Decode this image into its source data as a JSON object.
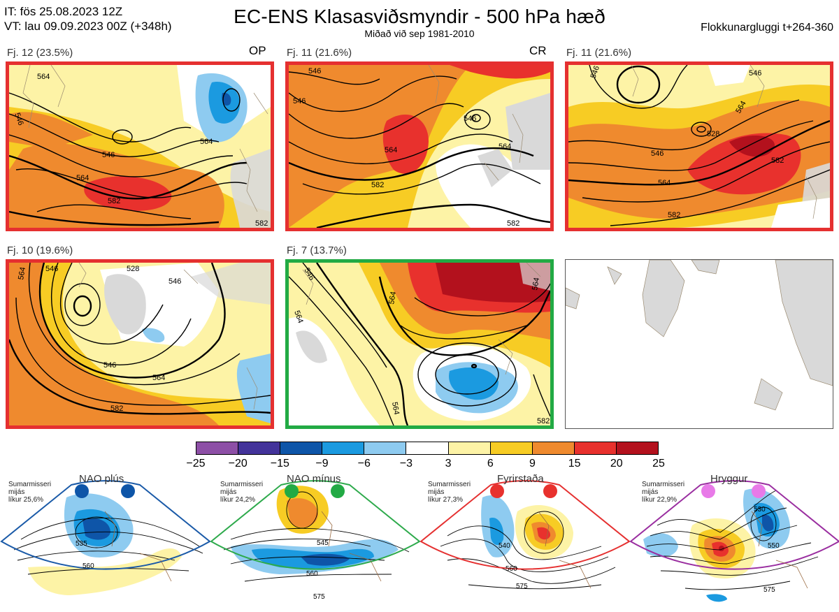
{
  "header": {
    "it_line": "IT: fös 25.08.2023 12Z",
    "vt_line": "VT: lau 09.09.2023 00Z  (+348h)",
    "title": "EC-ENS Klasasviðsmyndir - 500 hPa hæð",
    "subtitle": "Miðað við sep 1981-2010",
    "window": "Flokkunargluggi t+264-360"
  },
  "panels": [
    {
      "label": "Fj. 12 (23.5%)",
      "tag": "OP",
      "border": "#e53030",
      "contours": [
        "546",
        "564",
        "582",
        "564",
        "546",
        "564",
        "582"
      ]
    },
    {
      "label": "Fj. 11 (21.6%)",
      "tag": "CR",
      "border": "#e53030",
      "contours": [
        "546",
        "564",
        "546",
        "546",
        "564",
        "582",
        "582"
      ]
    },
    {
      "label": "Fj. 11 (21.6%)",
      "tag": "",
      "border": "#e53030",
      "contours": [
        "546",
        "546",
        "564",
        "528",
        "546",
        "564",
        "582",
        "582"
      ]
    },
    {
      "label": "Fj. 10 (19.6%)",
      "tag": "",
      "border": "#e53030",
      "contours": [
        "564",
        "546",
        "528",
        "546",
        "546",
        "564",
        "582"
      ]
    },
    {
      "label": "Fj. 7 (13.7%)",
      "tag": "",
      "border": "#22aa44",
      "contours": [
        "546",
        "564",
        "564",
        "564",
        "582",
        "564"
      ]
    }
  ],
  "colorbar": {
    "ticks": [
      "−25",
      "−20",
      "−15",
      "−9",
      "−6",
      "−3",
      "3",
      "6",
      "9",
      "15",
      "20",
      "25"
    ],
    "colors": [
      "#8d4fa6",
      "#43339a",
      "#0e55a8",
      "#1b9ae0",
      "#8ecbf0",
      "#ffffff",
      "#fdf3a6",
      "#f7cc24",
      "#ef8a2e",
      "#e8312d",
      "#b3111d"
    ]
  },
  "regimes": [
    {
      "name": "NAO plús",
      "note": [
        "Sumarmisseri",
        "mijás",
        "líkur 25,6%"
      ],
      "color": "#1a5aa8",
      "dot": "#0e55a8",
      "contours": [
        "535",
        "560"
      ]
    },
    {
      "name": "NAO mínus",
      "note": [
        "Sumarmisseri",
        "mijás",
        "líkur 24,2%"
      ],
      "color": "#2eaa4c",
      "dot": "#22aa44",
      "contours": [
        "545",
        "560",
        "575"
      ]
    },
    {
      "name": "Fyrirstaða",
      "note": [
        "Sumarmisseri",
        "mijás",
        "líkur 27,3%"
      ],
      "color": "#e53030",
      "dot": "#e53030",
      "contours": [
        "540",
        "560",
        "575"
      ]
    },
    {
      "name": "Hryggur",
      "note": [
        "Sumarmisseri",
        "mijás",
        "líkur 22,9%"
      ],
      "color": "#9a2ea0",
      "dot": "#e87ae8",
      "contours": [
        "530",
        "550",
        "575"
      ]
    }
  ]
}
